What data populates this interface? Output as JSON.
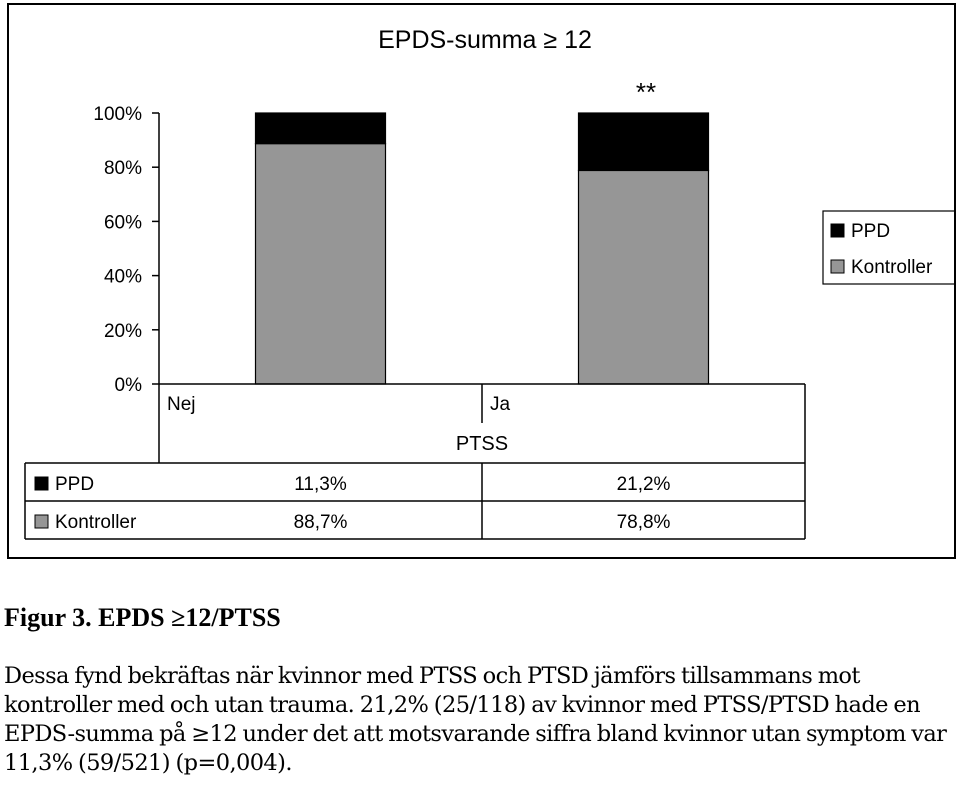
{
  "chart_data": {
    "type": "bar",
    "stacked": true,
    "title": "EPDS-summa ≥ 12",
    "xlabel": "PTSS",
    "categories": [
      "Nej",
      "Ja"
    ],
    "series": [
      {
        "name": "Kontroller",
        "values": [
          88.7,
          78.8
        ],
        "color": "#969696"
      },
      {
        "name": "PPD",
        "values": [
          11.3,
          21.2
        ],
        "color": "#000000"
      }
    ],
    "ylim": [
      0,
      100
    ],
    "yticks": [
      "0%",
      "20%",
      "40%",
      "60%",
      "80%",
      "100%"
    ],
    "annotation": "**",
    "grid": false,
    "legend": {
      "placement": "right",
      "items": [
        "PPD",
        "Kontroller"
      ]
    },
    "table": {
      "rows": [
        {
          "label": "PPD",
          "values": [
            "11,3%",
            "21,2%"
          ]
        },
        {
          "label": "Kontroller",
          "values": [
            "88,7%",
            "78,8%"
          ]
        }
      ]
    }
  },
  "caption": {
    "title": "Figur 3. EPDS ≥12/PTSS",
    "text": "Dessa fynd bekräftas när kvinnor med PTSS och PTSD jämförs tillsammans mot kontroller med och utan trauma. 21,2% (25/118) av kvinnor med PTSS/PTSD hade en EPDS-summa på ≥12 under det att motsvarande siffra bland kvinnor utan symptom var 11,3% (59/521) (p=0,004)."
  }
}
